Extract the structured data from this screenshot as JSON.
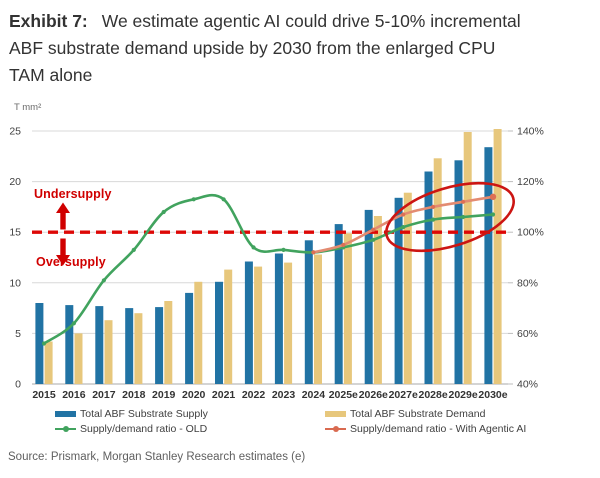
{
  "title": {
    "exhibit_label": "Exhibit 7:",
    "text": "We estimate agentic AI could drive 5-10% incremental ABF substrate demand upside by 2030 from the enlarged CPU TAM alone"
  },
  "source": "Source: Prismark, Morgan Stanley Research estimates (e)",
  "legend": {
    "items": [
      {
        "label": "Total ABF Substrate Supply",
        "type": "bar",
        "color": "#2173a4"
      },
      {
        "label": "Total ABF Substrate Demand",
        "type": "bar",
        "color": "#e7c77c"
      },
      {
        "label": "Supply/demand ratio - OLD",
        "type": "line",
        "color": "#41a35e"
      },
      {
        "label": "Supply/demand ratio - With Agentic AI",
        "type": "line",
        "color": "#d96a50"
      }
    ]
  },
  "chart_data": {
    "type": "bar+line combo",
    "unit_label": "T mm²",
    "categories": [
      "2015",
      "2016",
      "2017",
      "2018",
      "2019",
      "2020",
      "2021",
      "2022",
      "2023",
      "2024",
      "2025e",
      "2026e",
      "2027e",
      "2028e",
      "2029e",
      "2030e"
    ],
    "left_axis": {
      "ticks": [
        0,
        5,
        10,
        15,
        20,
        25
      ],
      "min": 0,
      "max": 25
    },
    "right_axis": {
      "ticks": [
        "40%",
        "60%",
        "80%",
        "100%",
        "120%",
        "140%"
      ],
      "min": 40,
      "max": 140
    },
    "series": [
      {
        "name": "Total ABF Substrate Supply",
        "type": "bar",
        "axis": "left",
        "color": "#2173a4",
        "values": [
          8.0,
          7.8,
          7.7,
          7.5,
          7.6,
          9.0,
          10.1,
          12.1,
          12.9,
          14.2,
          15.8,
          17.2,
          18.4,
          21.0,
          22.1,
          23.4
        ]
      },
      {
        "name": "Total ABF Substrate Demand",
        "type": "bar",
        "axis": "left",
        "color": "#e7c77c",
        "values": [
          4.2,
          5.0,
          6.3,
          7.0,
          8.2,
          10.1,
          11.3,
          11.6,
          12.0,
          12.8,
          14.9,
          16.6,
          18.9,
          22.3,
          24.9,
          25.2
        ]
      },
      {
        "name": "Supply/demand ratio - OLD",
        "type": "line",
        "axis": "right",
        "color": "#41a35e",
        "values": [
          56,
          64,
          81,
          93,
          108,
          113,
          113,
          94,
          93,
          92,
          94,
          97,
          102,
          105,
          106,
          107
        ]
      },
      {
        "name": "Supply/demand ratio - With Agentic AI",
        "type": "line",
        "axis": "right",
        "color": "#e38b71",
        "marker_color": "#dd6f55",
        "values": [
          null,
          null,
          null,
          null,
          null,
          null,
          null,
          null,
          null,
          92,
          95,
          101,
          107,
          110,
          112,
          114
        ]
      }
    ],
    "reference_line": {
      "value": 100,
      "color": "#dd0806",
      "style": "dashed"
    },
    "annotations": {
      "undersupply": "Undersupply",
      "oversupply": "Oversupply",
      "color": "#d00000"
    },
    "highlight": {
      "shape": "ellipse",
      "around": "2027e-2030e ratio lines",
      "color": "#cc1512"
    }
  }
}
